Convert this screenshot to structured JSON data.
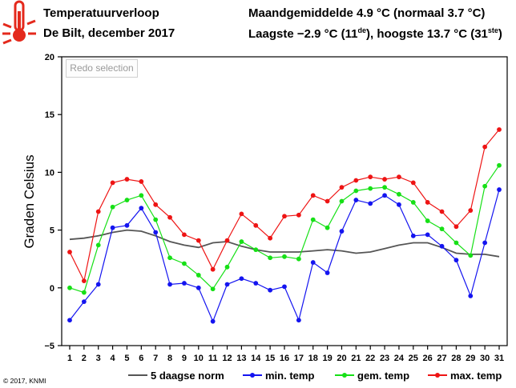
{
  "header": {
    "title": "Temperatuurverloop",
    "subtitle": "De Bilt, december 2017",
    "stats_line1": "Maandgemiddelde 4.9 °C (normaal 3.7 °C)",
    "stats_line2_prefix": "Laagste −2.9 °C (11",
    "stats_line2_sup1": "de",
    "stats_line2_mid": "), hoogste 13.7 °C (31",
    "stats_line2_sup2": "ste",
    "stats_line2_suffix": ")"
  },
  "redo_button": {
    "label": "Redo selection"
  },
  "copyright": "© 2017, KNMI",
  "icon": {
    "name": "thermometer-icon",
    "color": "#e4291c"
  },
  "chart_data": {
    "type": "line",
    "x": [
      1,
      2,
      3,
      4,
      5,
      6,
      7,
      8,
      9,
      10,
      11,
      12,
      13,
      14,
      15,
      16,
      17,
      18,
      19,
      20,
      21,
      22,
      23,
      24,
      25,
      26,
      27,
      28,
      29,
      30,
      31
    ],
    "y_label": "Graden Celsius",
    "ylim": [
      -5,
      20
    ],
    "y_ticks": [
      -5,
      0,
      5,
      10,
      15,
      20
    ],
    "grid": false,
    "legend_position": "bottom",
    "series": [
      {
        "name": "5 daagse norm",
        "color": "#555555",
        "markers": false,
        "values": [
          4.2,
          4.3,
          4.5,
          4.8,
          5.0,
          4.9,
          4.5,
          4.0,
          3.7,
          3.5,
          3.9,
          4.0,
          3.6,
          3.3,
          3.1,
          3.1,
          3.1,
          3.2,
          3.3,
          3.2,
          3.0,
          3.1,
          3.4,
          3.7,
          3.9,
          3.9,
          3.5,
          3.0,
          2.9,
          2.9,
          2.7
        ]
      },
      {
        "name": "min. temp",
        "color": "#1414f0",
        "markers": true,
        "values": [
          -2.8,
          -1.2,
          0.3,
          5.2,
          5.4,
          6.9,
          4.8,
          0.3,
          0.4,
          0.0,
          -2.9,
          0.3,
          0.8,
          0.4,
          -0.2,
          0.1,
          -2.8,
          2.2,
          1.3,
          4.9,
          7.6,
          7.3,
          8.0,
          7.2,
          4.5,
          4.6,
          3.6,
          2.4,
          -0.7,
          3.9,
          8.5
        ]
      },
      {
        "name": "gem. temp",
        "color": "#16e016",
        "markers": true,
        "values": [
          0.0,
          -0.4,
          3.7,
          7.0,
          7.6,
          8.0,
          5.9,
          2.6,
          2.1,
          1.1,
          -0.1,
          1.8,
          4.0,
          3.3,
          2.6,
          2.7,
          2.5,
          5.9,
          5.2,
          7.5,
          8.4,
          8.6,
          8.7,
          8.1,
          7.4,
          5.8,
          5.1,
          3.9,
          2.8,
          8.8,
          10.6
        ]
      },
      {
        "name": "max. temp",
        "color": "#ee1414",
        "markers": true,
        "values": [
          3.1,
          0.6,
          6.6,
          9.1,
          9.4,
          9.2,
          7.2,
          6.1,
          4.6,
          4.1,
          1.6,
          4.1,
          6.4,
          5.4,
          4.3,
          6.2,
          6.3,
          8.0,
          7.5,
          8.7,
          9.3,
          9.6,
          9.4,
          9.6,
          9.1,
          7.4,
          6.6,
          5.3,
          6.7,
          12.2,
          13.7
        ]
      }
    ]
  }
}
